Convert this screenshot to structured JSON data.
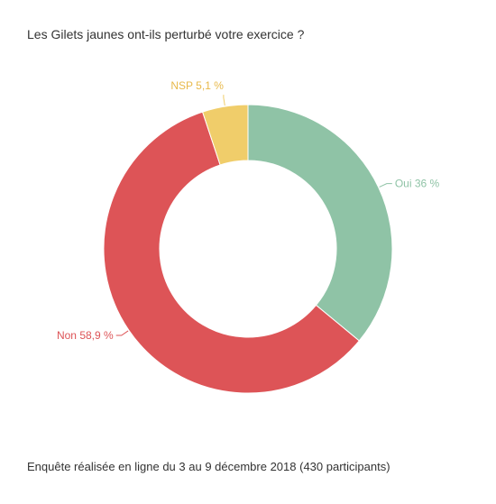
{
  "title": "Les Gilets jaunes ont-ils perturbé votre exercice ?",
  "footer": "Enquête réalisée en ligne du 3 au 9 décembre 2018  (430 participants)",
  "chart_data": {
    "type": "pie",
    "donut": true,
    "title": "Les Gilets jaunes ont-ils perturbé votre exercice ?",
    "slices": [
      {
        "label": "Oui 36 %",
        "category": "Oui",
        "value": 36,
        "color": "#8fc3a6"
      },
      {
        "label": "Non 58,9 %",
        "category": "Non",
        "value": 58.9,
        "color": "#dd5457"
      },
      {
        "label": "NSP 5,1 %",
        "category": "NSP",
        "value": 5.1,
        "color": "#f0cd6a"
      }
    ]
  }
}
